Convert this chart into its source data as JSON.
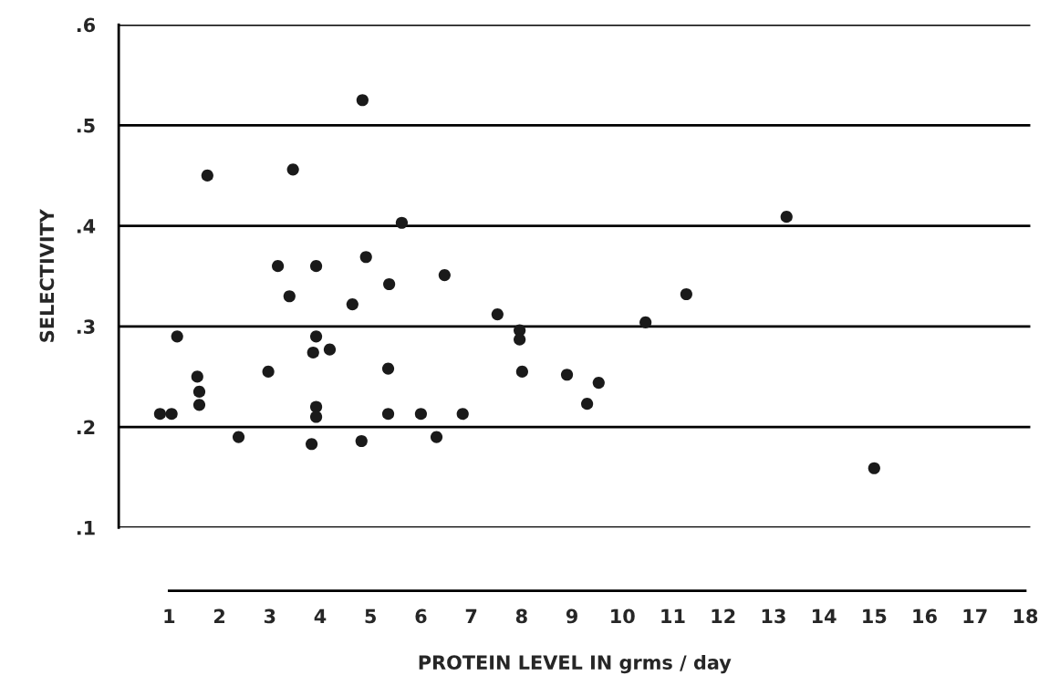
{
  "chart_data": {
    "type": "scatter",
    "xlabel": "PROTEIN LEVEL IN grms / day",
    "ylabel": "SELECTIVITY",
    "x": [
      0.82,
      1.05,
      1.16,
      1.56,
      1.6,
      1.6,
      1.76,
      2.38,
      2.97,
      3.16,
      3.39,
      3.46,
      3.83,
      3.86,
      3.92,
      3.92,
      3.92,
      3.92,
      4.19,
      4.64,
      4.84,
      4.82,
      4.91,
      5.35,
      5.37,
      5.35,
      5.62,
      6.0,
      6.31,
      6.47,
      6.83,
      7.52,
      7.96,
      7.96,
      8.01,
      8.9,
      9.3,
      9.53,
      10.46,
      11.27,
      13.26,
      15.0
    ],
    "series": [
      {
        "color": "#1a1a1a",
        "values": [
          0.213,
          0.213,
          0.29,
          0.25,
          0.235,
          0.222,
          0.45,
          0.19,
          0.255,
          0.36,
          0.33,
          0.456,
          0.183,
          0.274,
          0.36,
          0.29,
          0.22,
          0.21,
          0.277,
          0.322,
          0.525,
          0.186,
          0.369,
          0.258,
          0.342,
          0.213,
          0.403,
          0.213,
          0.19,
          0.351,
          0.213,
          0.312,
          0.296,
          0.287,
          0.255,
          0.252,
          0.223,
          0.244,
          0.304,
          0.332,
          0.409,
          0.159
        ]
      }
    ],
    "marker": "circle",
    "xlim": [
      0,
      18.1
    ],
    "xticks": [
      1,
      2,
      3,
      4,
      5,
      6,
      7,
      8,
      9,
      10,
      11,
      12,
      13,
      14,
      15,
      16,
      17,
      18
    ],
    "ylim": [
      0.1,
      0.6
    ],
    "yticks": [
      {
        "value": 0.1,
        "label": ".1"
      },
      {
        "value": 0.2,
        "label": ".2"
      },
      {
        "value": 0.3,
        "label": ".3"
      },
      {
        "value": 0.4,
        "label": ".4"
      },
      {
        "value": 0.5,
        "label": ".5"
      },
      {
        "value": 0.6,
        "label": ".6"
      }
    ],
    "grid": "y",
    "legend": false
  }
}
